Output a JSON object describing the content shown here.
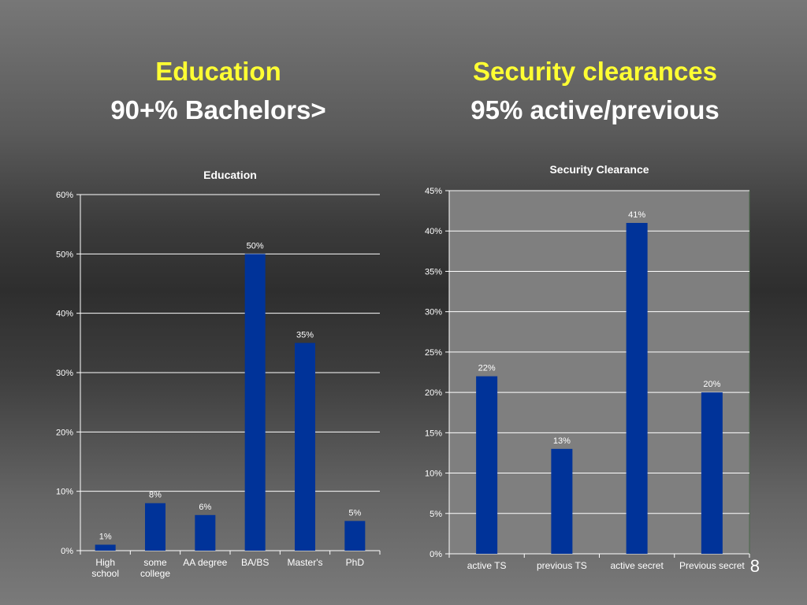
{
  "slide": {
    "left_title": "Education",
    "left_subtitle": "90+% Bachelors>",
    "right_title": "Security clearances",
    "right_subtitle": "95% active/previous",
    "page_number": "8"
  },
  "colors": {
    "bar": "#003399",
    "title_accent": "#ffff33",
    "grid": "#ffffff",
    "plot_bg_right": "#7f7f7f"
  },
  "chart_data": [
    {
      "type": "bar",
      "title": "Education",
      "categories": [
        [
          "High",
          "school"
        ],
        [
          "some",
          "college"
        ],
        [
          "AA degree"
        ],
        [
          "BA/BS"
        ],
        [
          "Master's"
        ],
        [
          "PhD"
        ]
      ],
      "values": [
        1,
        8,
        6,
        50,
        35,
        5
      ],
      "data_labels": [
        "1%",
        "8%",
        "6%",
        "50%",
        "35%",
        "5%"
      ],
      "ylim": [
        0,
        60
      ],
      "yticks": [
        "0%",
        "10%",
        "20%",
        "30%",
        "40%",
        "50%",
        "60%"
      ],
      "grid": true,
      "legend": "none"
    },
    {
      "type": "bar",
      "title": "Security Clearance",
      "categories": [
        [
          "active TS"
        ],
        [
          "previous TS"
        ],
        [
          "active secret"
        ],
        [
          "Previous secret"
        ]
      ],
      "values": [
        22,
        13,
        41,
        20
      ],
      "data_labels": [
        "22%",
        "13%",
        "41%",
        "20%"
      ],
      "ylim": [
        0,
        45
      ],
      "yticks": [
        "0%",
        "5%",
        "10%",
        "15%",
        "20%",
        "25%",
        "30%",
        "35%",
        "40%",
        "45%"
      ],
      "grid": true,
      "legend": "none"
    }
  ]
}
